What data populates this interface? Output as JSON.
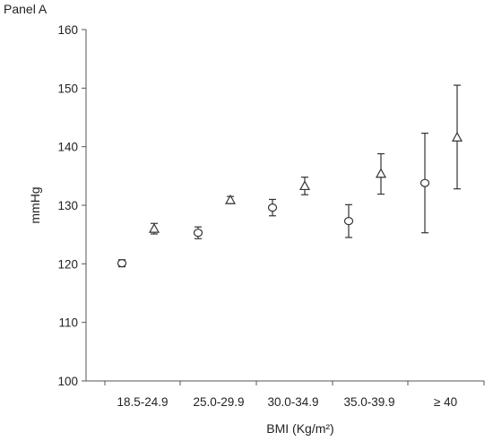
{
  "panel_label": "Panel A",
  "chart_data": {
    "type": "scatter",
    "title": "",
    "xlabel": "BMI (Kg/m²)",
    "ylabel": "mmHg",
    "ylim": [
      100,
      160
    ],
    "yticks": [
      100,
      110,
      120,
      130,
      140,
      150,
      160
    ],
    "categories": [
      "18.5-24.9",
      "25.0-29.9",
      "30.0-34.9",
      "35.0-39.9",
      "≥ 40"
    ],
    "series": [
      {
        "marker": "circle",
        "values": [
          120.1,
          125.3,
          129.6,
          127.3,
          133.8
        ],
        "lower": [
          119.5,
          124.3,
          128.2,
          124.5,
          125.3
        ],
        "upper": [
          120.7,
          126.3,
          131.0,
          130.1,
          142.3
        ]
      },
      {
        "marker": "triangle",
        "values": [
          126.0,
          130.9,
          133.3,
          135.4,
          141.6
        ],
        "lower": [
          125.1,
          130.3,
          131.8,
          131.9,
          132.8
        ],
        "upper": [
          126.9,
          131.5,
          134.8,
          138.8,
          150.5
        ]
      }
    ],
    "grid": false,
    "legend": "none",
    "colors": {
      "marker": "#333333",
      "axis": "#555555"
    }
  }
}
